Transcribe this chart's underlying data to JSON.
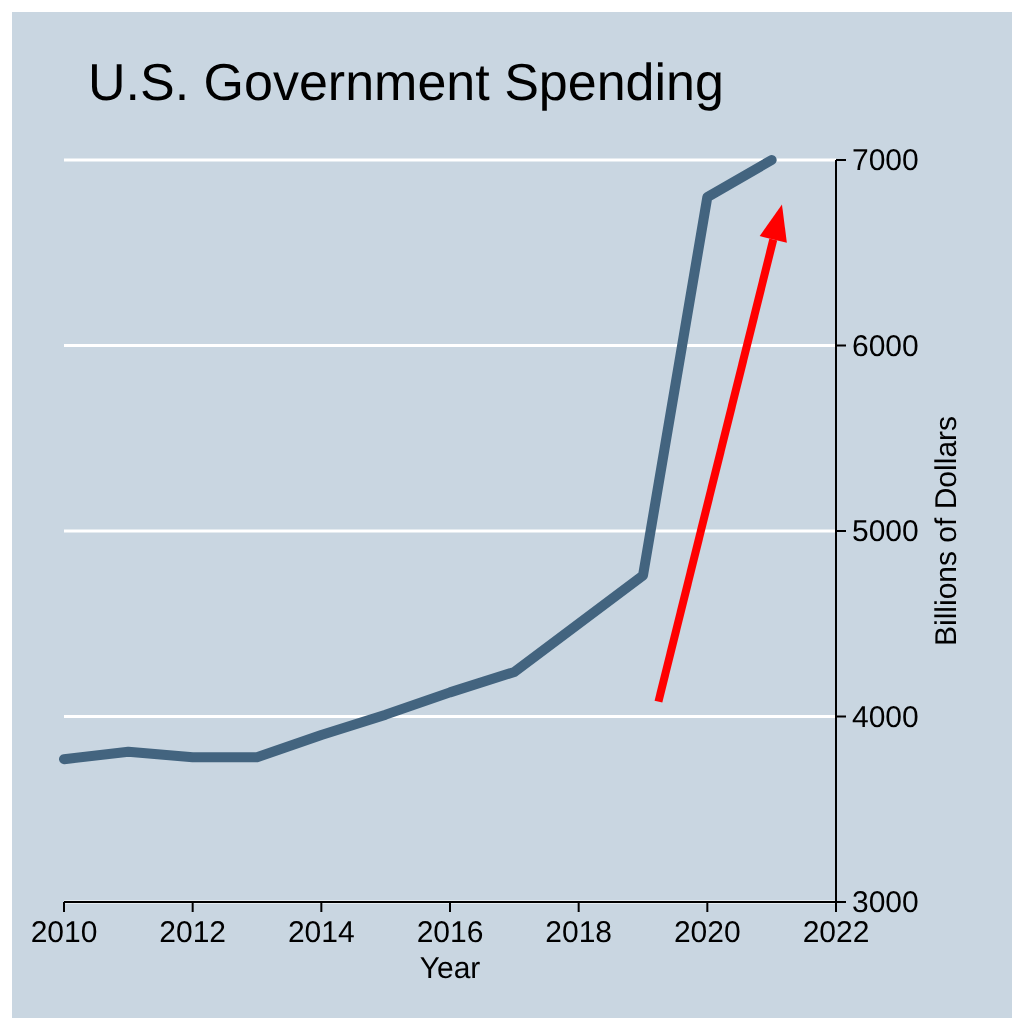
{
  "chart_data": {
    "type": "line",
    "title": "U.S. Government Spending",
    "xlabel": "Year",
    "ylabel": "Billions of Dollars",
    "x": [
      2010,
      2011,
      2012,
      2013,
      2014,
      2015,
      2016,
      2017,
      2018,
      2019,
      2020,
      2021
    ],
    "series": [
      {
        "color": "#43647f",
        "values": [
          3770,
          3810,
          3780,
          3780,
          3900,
          4010,
          4130,
          4240,
          4500,
          4760,
          6800,
          7000
        ]
      }
    ],
    "xlim": [
      2010,
      2022
    ],
    "xticks": [
      2010,
      2012,
      2014,
      2016,
      2018,
      2020,
      2022
    ],
    "ylim": [
      3000,
      7000
    ],
    "yticks": [
      3000,
      4000,
      5000,
      6000,
      7000
    ],
    "grid": "y",
    "line_style": "solid",
    "marker": "none"
  }
}
